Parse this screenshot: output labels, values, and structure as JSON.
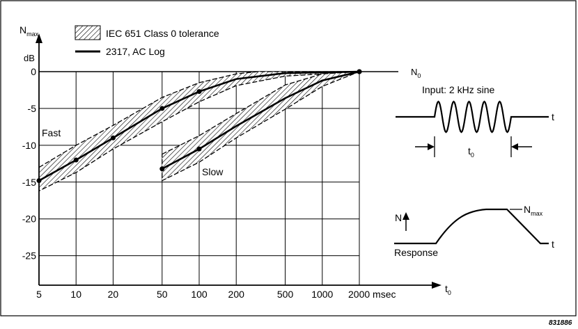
{
  "chart_data": {
    "type": "line",
    "x_axis": {
      "scale": "log",
      "tick_labels": [
        "5",
        "10",
        "20",
        "50",
        "100",
        "200",
        "500",
        "1000",
        "2000 msec"
      ],
      "tick_values": [
        5,
        10,
        20,
        50,
        100,
        200,
        500,
        1000,
        2000
      ],
      "label_main": "t",
      "label_sub": "0"
    },
    "y_axis": {
      "label_main": "N",
      "label_sub": "max",
      "unit": "dB",
      "tick_values": [
        0,
        -5,
        -10,
        -15,
        -20,
        -25
      ],
      "tick_labels": [
        "0",
        "-5",
        "-10",
        "-15",
        "-20",
        "-25"
      ],
      "ylim": [
        -29,
        0
      ]
    },
    "reference_line": {
      "label_main": "N",
      "label_sub": "0",
      "y": 0
    },
    "legend": [
      {
        "label": "IEC 651 Class 0 tolerance",
        "style": "hatched band"
      },
      {
        "label": "2317, AC Log",
        "style": "solid line"
      }
    ],
    "series": [
      {
        "name": "Fast",
        "points": [
          [
            5,
            -14.8
          ],
          [
            10,
            -12.0
          ],
          [
            20,
            -9.0
          ],
          [
            50,
            -5.0
          ],
          [
            100,
            -2.7
          ],
          [
            200,
            -1.0
          ],
          [
            500,
            -0.2
          ],
          [
            2000,
            0
          ]
        ],
        "tolerance_upper": [
          [
            5,
            -13.0
          ],
          [
            10,
            -10.0
          ],
          [
            20,
            -7.3
          ],
          [
            50,
            -3.5
          ],
          [
            100,
            -1.5
          ],
          [
            200,
            -0.3
          ],
          [
            300,
            0
          ]
        ],
        "tolerance_lower": [
          [
            5,
            -16.2
          ],
          [
            10,
            -13.7
          ],
          [
            20,
            -10.5
          ],
          [
            50,
            -6.8
          ],
          [
            100,
            -4.1
          ],
          [
            200,
            -1.9
          ],
          [
            500,
            -0.6
          ],
          [
            1000,
            -0.3
          ],
          [
            2000,
            0
          ]
        ]
      },
      {
        "name": "Slow",
        "points": [
          [
            50,
            -13.2
          ],
          [
            100,
            -10.5
          ],
          [
            200,
            -7.4
          ],
          [
            500,
            -3.6
          ],
          [
            1000,
            -1.2
          ],
          [
            2000,
            0
          ]
        ],
        "tolerance_upper": [
          [
            50,
            -11.2
          ],
          [
            100,
            -8.7
          ],
          [
            200,
            -5.7
          ],
          [
            500,
            -1.8
          ],
          [
            1000,
            -0.3
          ],
          [
            2000,
            0
          ]
        ],
        "tolerance_lower": [
          [
            50,
            -14.8
          ],
          [
            100,
            -12.3
          ],
          [
            200,
            -9.0
          ],
          [
            500,
            -5.1
          ],
          [
            1000,
            -2.0
          ],
          [
            2000,
            0
          ]
        ]
      }
    ],
    "annotations": {
      "input_label": "Input: 2 kHz sine",
      "t_label": "t",
      "t0_main": "t",
      "t0_sub": "0",
      "response_label": "Response",
      "n_label": "N",
      "nmax_main": "N",
      "nmax_sub": "max"
    },
    "figure_id": "831886"
  }
}
